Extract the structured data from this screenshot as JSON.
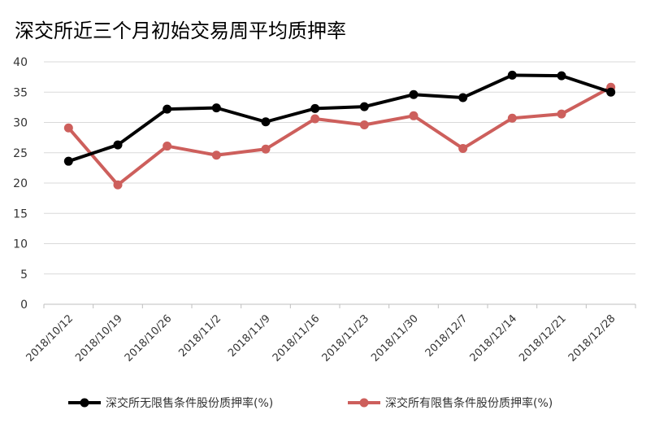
{
  "chart_data": {
    "type": "line",
    "title": "深交所近三个月初始交易周平均质押率",
    "categories": [
      "2018/10/12",
      "2018/10/19",
      "2018/10/26",
      "2018/11/2",
      "2018/11/9",
      "2018/11/16",
      "2018/11/23",
      "2018/11/30",
      "2018/12/7",
      "2018/12/14",
      "2018/12/21",
      "2018/12/28"
    ],
    "series": [
      {
        "name": "深交所无限售条件股份质押率(%)",
        "color": "#000000",
        "values": [
          23.6,
          26.3,
          32.2,
          32.4,
          30.1,
          32.3,
          32.6,
          34.6,
          34.1,
          37.8,
          37.7,
          35.0
        ]
      },
      {
        "name": "深交所有限售条件股份质押率(%)",
        "color": "#cd5f5c",
        "values": [
          29.1,
          19.7,
          26.1,
          24.6,
          25.6,
          30.6,
          29.6,
          31.1,
          25.7,
          30.7,
          31.4,
          35.8
        ]
      }
    ],
    "ylim": [
      0,
      40
    ],
    "yticks": [
      "0",
      "5",
      "10",
      "15",
      "20",
      "25",
      "30",
      "35",
      "40"
    ],
    "grid": true,
    "legend_position": "bottom"
  }
}
